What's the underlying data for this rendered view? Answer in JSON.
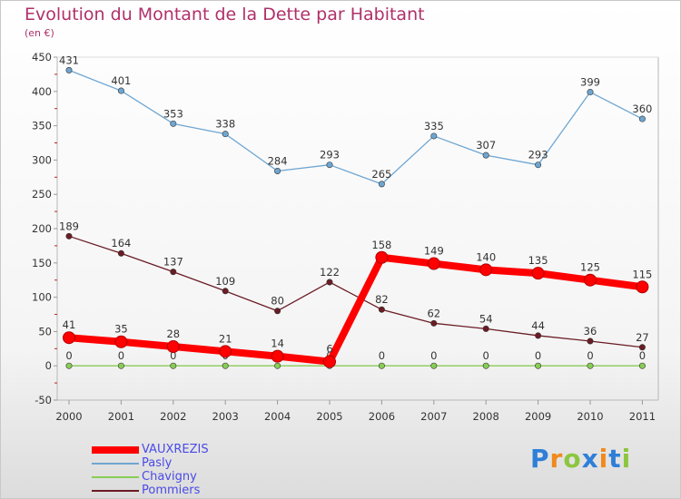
{
  "header": {
    "title": "Evolution du Montant de la Dette par Habitant",
    "subtitle": "(en €)"
  },
  "chart_data": {
    "type": "line",
    "title": "Evolution du Montant de la Dette par Habitant",
    "subtitle": "(en €)",
    "xlabel": "",
    "ylabel": "",
    "x": [
      2000,
      2001,
      2002,
      2003,
      2004,
      2005,
      2006,
      2007,
      2008,
      2009,
      2010,
      2011
    ],
    "ylim": [
      -50,
      450
    ],
    "yticks": [
      -50,
      0,
      50,
      100,
      150,
      200,
      250,
      300,
      350,
      400,
      450
    ],
    "grid": false,
    "legend_position": "bottom-left",
    "series": [
      {
        "name": "VAUXREZIS",
        "color": "#ff0000",
        "values": [
          41,
          35,
          28,
          21,
          14,
          6,
          158,
          149,
          140,
          135,
          125,
          115
        ]
      },
      {
        "name": "Pasly",
        "color": "#6ea6d2",
        "values": [
          431,
          401,
          353,
          338,
          284,
          293,
          265,
          335,
          307,
          293,
          399,
          360
        ]
      },
      {
        "name": "Chavigny",
        "color": "#88cc55",
        "values": [
          0,
          0,
          0,
          0,
          0,
          0,
          0,
          0,
          0,
          0,
          0,
          0
        ]
      },
      {
        "name": "Pommiers",
        "color": "#6b1c24",
        "values": [
          189,
          164,
          137,
          109,
          80,
          122,
          82,
          62,
          54,
          44,
          36,
          27
        ]
      }
    ]
  },
  "logo": {
    "letters": [
      "P",
      "r",
      "o",
      "x",
      "i",
      "t",
      "i"
    ],
    "colors": [
      "#2f7fd8",
      "#f08a1c",
      "#8cc63f",
      "#2f7fd8",
      "#f08a1c",
      "#2f7fd8",
      "#8cc63f"
    ]
  }
}
